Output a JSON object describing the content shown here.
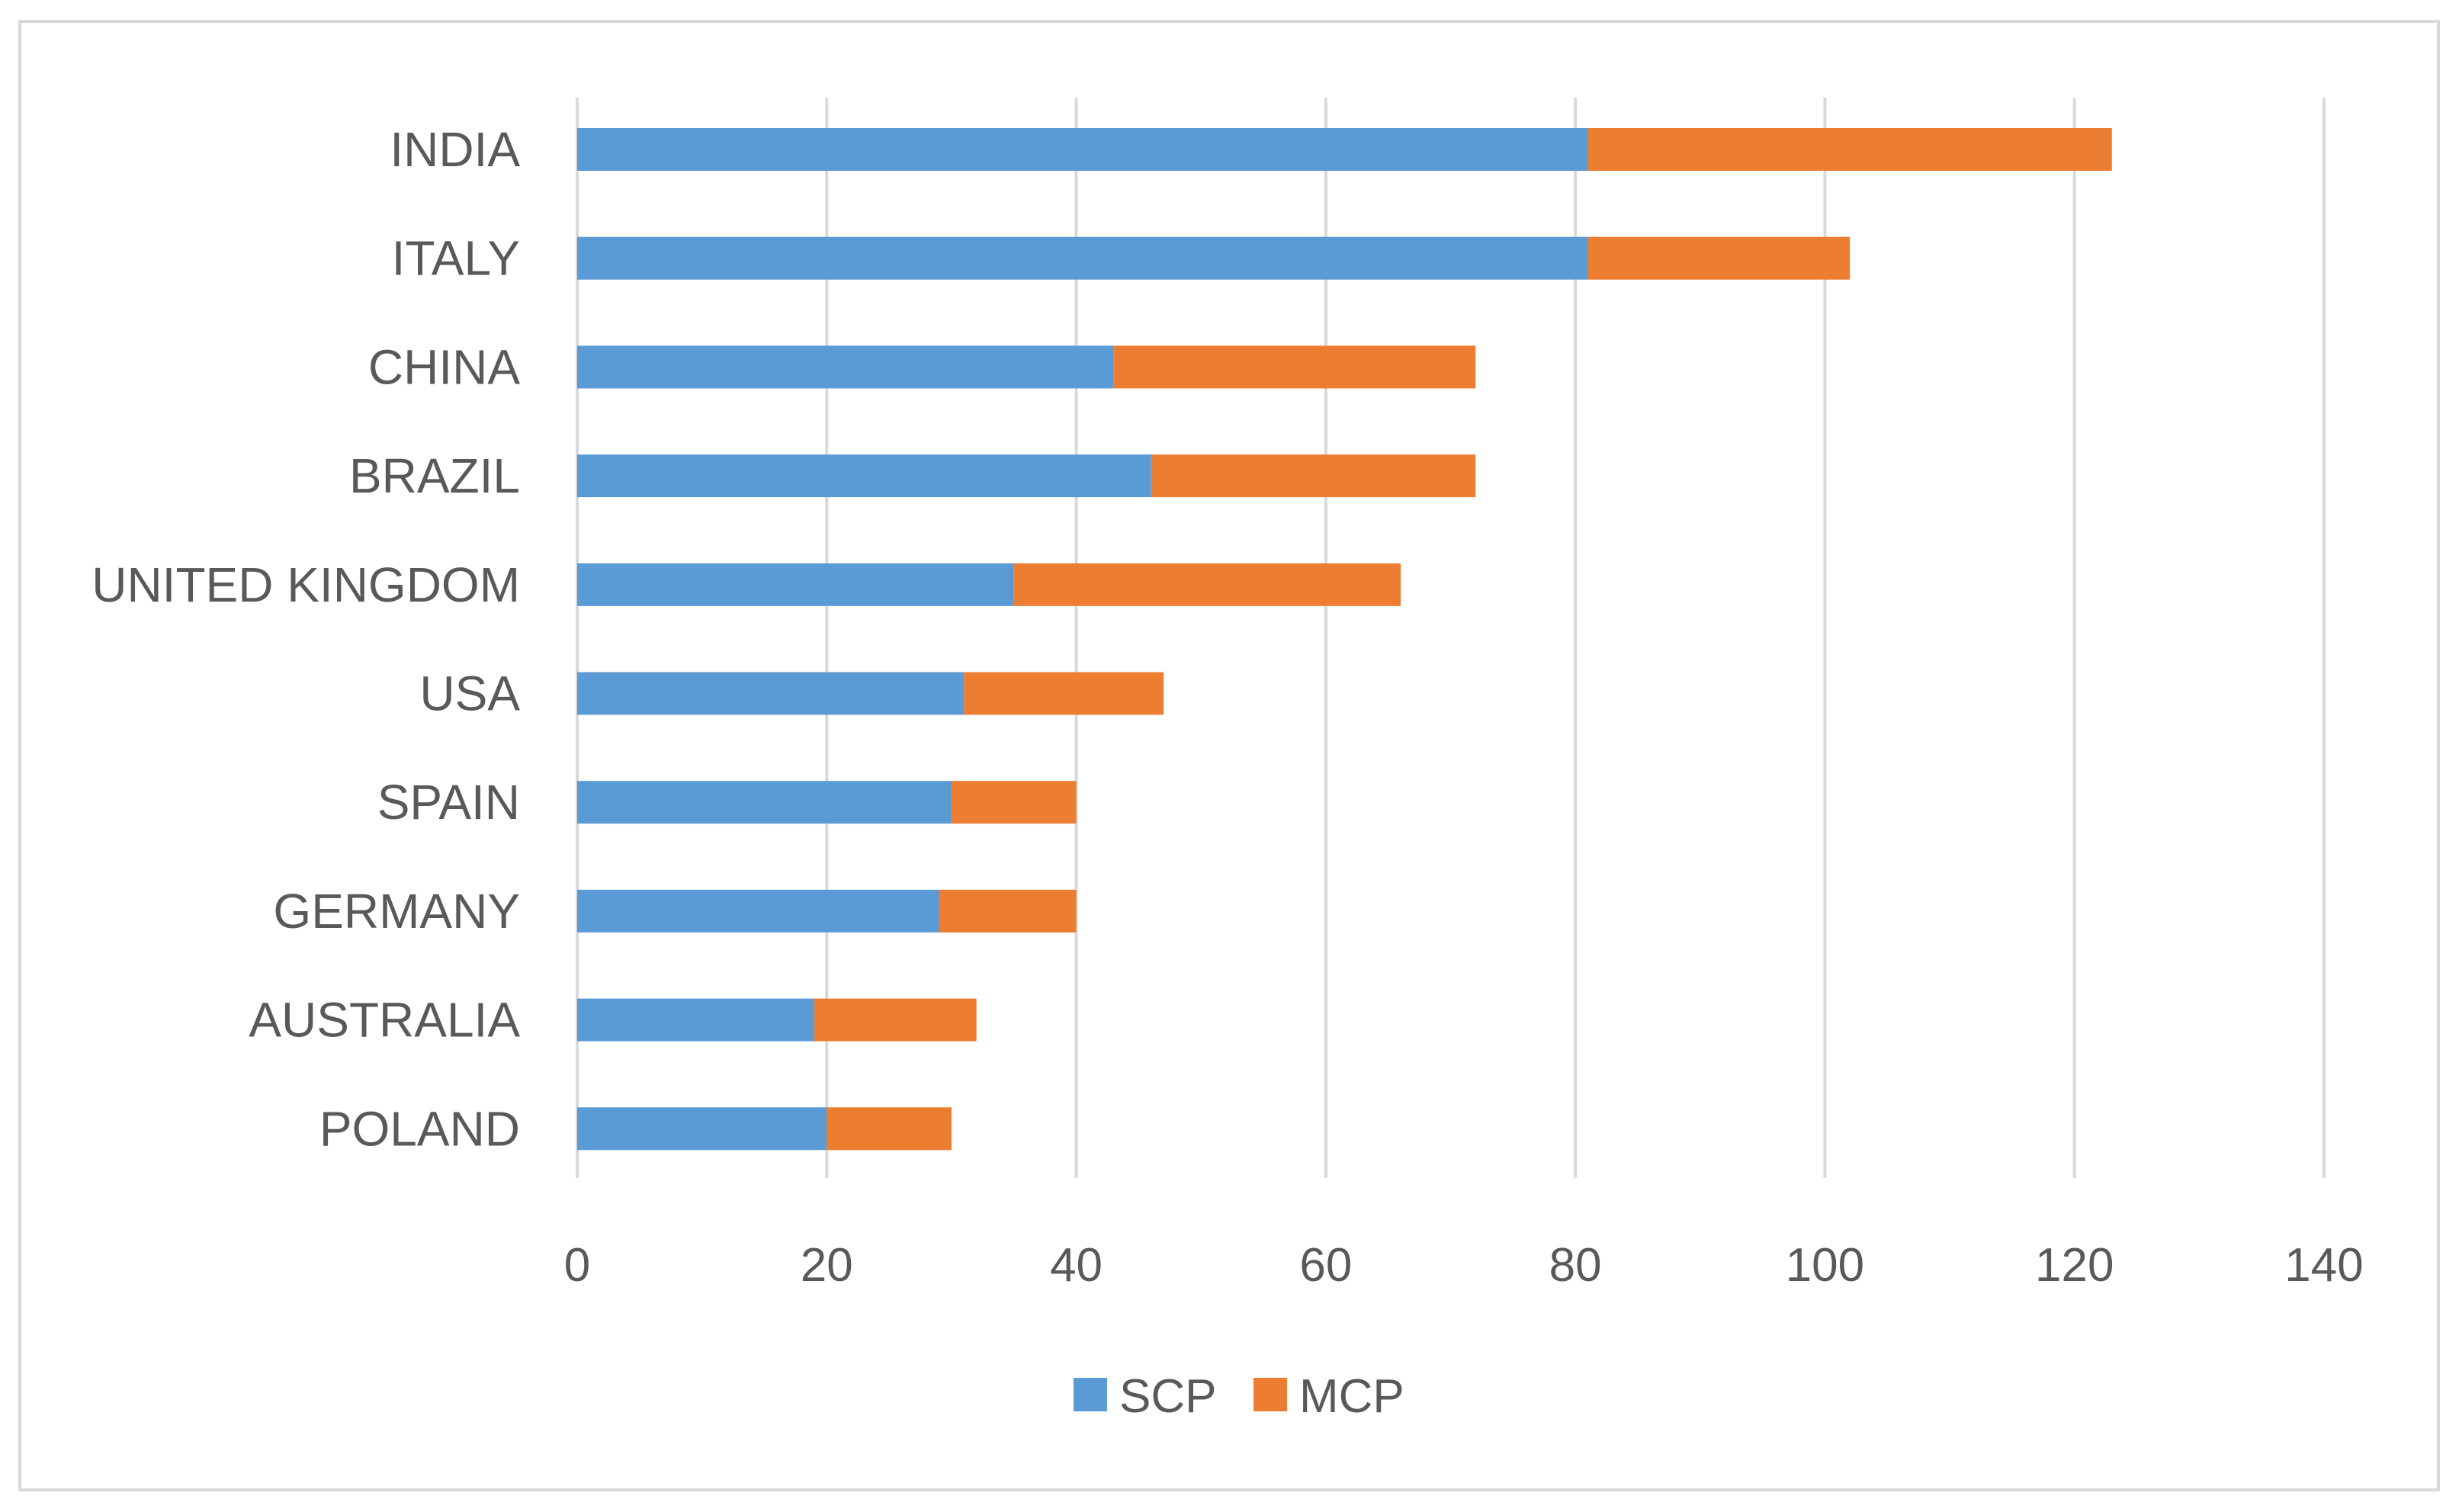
{
  "chart_data": {
    "type": "bar",
    "orientation": "horizontal",
    "stacked": true,
    "title": "",
    "xlabel": "",
    "ylabel": "",
    "xlim": [
      0,
      140
    ],
    "x_ticks": [
      0,
      20,
      40,
      60,
      80,
      100,
      120,
      140
    ],
    "grid": true,
    "legend_position": "bottom",
    "categories": [
      "INDIA",
      "ITALY",
      "CHINA",
      "BRAZIL",
      "UNITED KINGDOM",
      "USA",
      "SPAIN",
      "GERMANY",
      "AUSTRALIA",
      "POLAND"
    ],
    "series": [
      {
        "name": "SCP",
        "color": "#5b9bd5",
        "values": [
          81,
          81,
          43,
          46,
          35,
          31,
          30,
          29,
          19,
          20
        ]
      },
      {
        "name": "MCP",
        "color": "#ed7d31",
        "values": [
          42,
          21,
          29,
          26,
          31,
          16,
          10,
          11,
          13,
          10
        ]
      }
    ]
  }
}
